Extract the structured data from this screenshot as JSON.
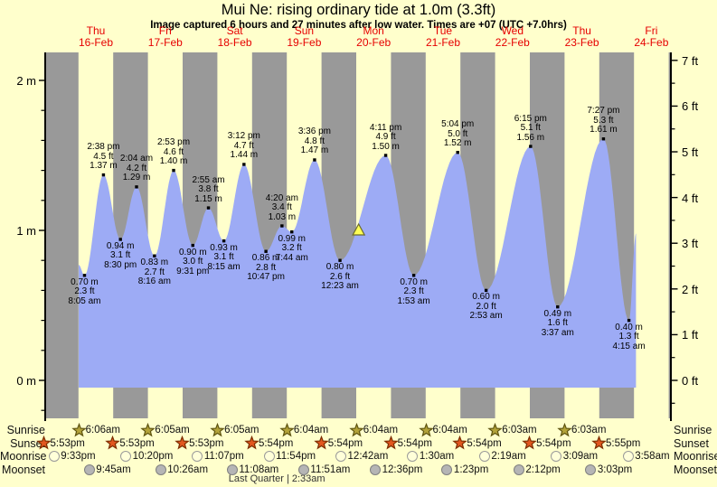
{
  "title": "Mui Ne: rising  ordinary tide at 1.0m (3.3ft)",
  "subtitle": "Image captured 6 hours and 27 minutes after low water. Times are +07 (UTC +7.0hrs)",
  "colors": {
    "background": "#ffffcc",
    "night_band": "#999999",
    "day_band": "#ffffcc",
    "tide_fill": "#9dabf5",
    "day_label_red": "#e60000",
    "axis": "#000000",
    "marker_fill": "#ffff55",
    "marker_stroke": "#6b6b2a",
    "sunrise_star_fill": "#b3a339",
    "sunrise_star_stroke": "#5e5410",
    "sunset_star_fill": "#e2571f",
    "sunset_star_stroke": "#7c2d00",
    "moonrise_fill": "#ffffd9",
    "moonrise_stroke": "#999999",
    "moonset_fill": "#b5b5b5",
    "moonset_stroke": "#808080"
  },
  "days": [
    {
      "name": "Thu",
      "date": "16-Feb"
    },
    {
      "name": "Fri",
      "date": "17-Feb"
    },
    {
      "name": "Sat",
      "date": "18-Feb"
    },
    {
      "name": "Sun",
      "date": "19-Feb"
    },
    {
      "name": "Mon",
      "date": "20-Feb"
    },
    {
      "name": "Tue",
      "date": "21-Feb"
    },
    {
      "name": "Wed",
      "date": "22-Feb"
    },
    {
      "name": "Thu",
      "date": "23-Feb"
    },
    {
      "name": "Fri",
      "date": "24-Feb"
    }
  ],
  "chart_data": {
    "type": "area",
    "x_unit": "hours after Thu 16-Feb 00:00 (+07)",
    "y_axis_left": {
      "unit": "m",
      "ticks": [
        {
          "value": 0,
          "label": "0 m"
        },
        {
          "value": 1,
          "label": "1 m"
        },
        {
          "value": 2,
          "label": "2 m"
        }
      ],
      "minor_step": 0.2,
      "minor_min": -0.2,
      "minor_max": 2.0
    },
    "y_axis_right": {
      "unit": "ft",
      "ticks": [
        {
          "value": 0,
          "label": "0 ft"
        },
        {
          "value": 1,
          "label": "1 ft"
        },
        {
          "value": 2,
          "label": "2 ft"
        },
        {
          "value": 3,
          "label": "3 ft"
        },
        {
          "value": 4,
          "label": "4 ft"
        },
        {
          "value": 5,
          "label": "5 ft"
        },
        {
          "value": 6,
          "label": "6 ft"
        },
        {
          "value": 7,
          "label": "7 ft"
        }
      ],
      "minor_step": 0.5,
      "minor_min": -0.5,
      "minor_max": 6.5
    },
    "night_bands": {
      "first_start_hour": -6,
      "duration_hours": 12,
      "period_hours": 24,
      "count": 10
    },
    "series_start": {
      "hours": 6.06,
      "meters": 0.77
    },
    "series_end": {
      "hours": 198.7,
      "meters": 0.98
    },
    "capture_marker": {
      "hours": 102.83,
      "meters": 1.0,
      "shape": "up-triangle"
    },
    "extremes": [
      {
        "kind": "low",
        "hours": 8.083,
        "meters": 0.7,
        "lines": [
          "0.70 m",
          "2.3 ft",
          "8:05 am"
        ]
      },
      {
        "kind": "high",
        "hours": 14.633,
        "meters": 1.37,
        "lines": [
          "2:38 pm",
          "4.5 ft",
          "1.37 m"
        ]
      },
      {
        "kind": "low",
        "hours": 20.5,
        "meters": 0.94,
        "lines": [
          "0.94 m",
          "3.1 ft",
          "8:30 pm"
        ]
      },
      {
        "kind": "high",
        "hours": 26.067,
        "meters": 1.29,
        "lines": [
          "2:04 am",
          "4.2 ft",
          "1.29 m"
        ]
      },
      {
        "kind": "low",
        "hours": 32.267,
        "meters": 0.83,
        "lines": [
          "0.83 m",
          "2.7 ft",
          "8:16 am"
        ]
      },
      {
        "kind": "high",
        "hours": 38.883,
        "meters": 1.4,
        "lines": [
          "2:53 pm",
          "4.6 ft",
          "1.40 m"
        ]
      },
      {
        "kind": "low",
        "hours": 45.517,
        "meters": 0.9,
        "lines": [
          "0.90 m",
          "3.0 ft",
          "9:31 pm"
        ]
      },
      {
        "kind": "high",
        "hours": 50.917,
        "meters": 1.15,
        "lines": [
          "2:55 am",
          "3.8 ft",
          "1.15 m"
        ]
      },
      {
        "kind": "low",
        "hours": 56.25,
        "meters": 0.93,
        "lines": [
          "0.93 m",
          "3.1 ft",
          "8:15 am"
        ]
      },
      {
        "kind": "high",
        "hours": 63.2,
        "meters": 1.44,
        "lines": [
          "3:12 pm",
          "4.7 ft",
          "1.44 m"
        ]
      },
      {
        "kind": "low",
        "hours": 70.783,
        "meters": 0.86,
        "lines": [
          "0.86 m",
          "2.8 ft",
          "10:47 pm"
        ]
      },
      {
        "kind": "high",
        "hours": 76.333,
        "meters": 1.03,
        "lines": [
          "4:20 am",
          "3.4 ft",
          "1.03 m"
        ]
      },
      {
        "kind": "low",
        "hours": 79.733,
        "meters": 0.99,
        "lines": [
          "0.99 m",
          "3.2 ft",
          "7:44 am"
        ]
      },
      {
        "kind": "high",
        "hours": 87.6,
        "meters": 1.47,
        "lines": [
          "3:36 pm",
          "4.8 ft",
          "1.47 m"
        ]
      },
      {
        "kind": "low",
        "hours": 96.383,
        "meters": 0.8,
        "lines": [
          "0.80 m",
          "2.6 ft",
          "12:23 am"
        ]
      },
      {
        "kind": "high",
        "hours": 112.183,
        "meters": 1.5,
        "lines": [
          "4:11 pm",
          "4.9 ft",
          "1.50 m"
        ]
      },
      {
        "kind": "low",
        "hours": 121.883,
        "meters": 0.7,
        "lines": [
          "0.70 m",
          "2.3 ft",
          "1:53 am"
        ]
      },
      {
        "kind": "high",
        "hours": 137.067,
        "meters": 1.52,
        "lines": [
          "5:04 pm",
          "5.0 ft",
          "1.52 m"
        ]
      },
      {
        "kind": "low",
        "hours": 146.883,
        "meters": 0.6,
        "lines": [
          "0.60 m",
          "2.0 ft",
          "2:53 am"
        ]
      },
      {
        "kind": "high",
        "hours": 162.25,
        "meters": 1.56,
        "lines": [
          "6:15 pm",
          "5.1 ft",
          "1.56 m"
        ]
      },
      {
        "kind": "low",
        "hours": 171.617,
        "meters": 0.49,
        "lines": [
          "0.49 m",
          "1.6 ft",
          "3:37 am"
        ]
      },
      {
        "kind": "high",
        "hours": 187.45,
        "meters": 1.61,
        "lines": [
          "7:27 pm",
          "5.3 ft",
          "1.61 m"
        ]
      },
      {
        "kind": "low",
        "hours": 196.25,
        "meters": 0.4,
        "lines": [
          "0.40 m",
          "1.3 ft",
          "4:15 am"
        ]
      }
    ]
  },
  "astro": {
    "rows": [
      {
        "key": "sunrise",
        "label": "Sunrise",
        "icon": "star",
        "entries": [
          {
            "time": "6:06am",
            "hours": 6.1
          },
          {
            "time": "6:05am",
            "hours": 30.083
          },
          {
            "time": "6:05am",
            "hours": 54.083
          },
          {
            "time": "6:04am",
            "hours": 78.067
          },
          {
            "time": "6:04am",
            "hours": 102.067
          },
          {
            "time": "6:04am",
            "hours": 126.067
          },
          {
            "time": "6:03am",
            "hours": 150.05
          },
          {
            "time": "6:03am",
            "hours": 174.05
          }
        ]
      },
      {
        "key": "sunset",
        "label": "Sunset",
        "icon": "star",
        "entries": [
          {
            "time": "5:53pm",
            "hours": -6.117
          },
          {
            "time": "5:53pm",
            "hours": 17.883
          },
          {
            "time": "5:53pm",
            "hours": 41.883
          },
          {
            "time": "5:54pm",
            "hours": 65.9
          },
          {
            "time": "5:54pm",
            "hours": 89.9
          },
          {
            "time": "5:54pm",
            "hours": 113.9
          },
          {
            "time": "5:54pm",
            "hours": 137.9
          },
          {
            "time": "5:54pm",
            "hours": 161.9
          },
          {
            "time": "5:55pm",
            "hours": 185.917
          }
        ]
      },
      {
        "key": "moonrise",
        "label": "Moonrise",
        "icon": "circle",
        "entries": [
          {
            "time": "9:33pm",
            "hours": -2.45
          },
          {
            "time": "10:20pm",
            "hours": 22.333
          },
          {
            "time": "11:07pm",
            "hours": 47.117
          },
          {
            "time": "11:54pm",
            "hours": 71.9
          },
          {
            "time": "12:42am",
            "hours": 96.7
          },
          {
            "time": "1:30am",
            "hours": 121.5
          },
          {
            "time": "2:19am",
            "hours": 146.317
          },
          {
            "time": "3:09am",
            "hours": 171.15
          },
          {
            "time": "3:58am",
            "hours": 195.967
          }
        ]
      },
      {
        "key": "moonset",
        "label": "Moonset",
        "icon": "circle",
        "entries": [
          {
            "time": "9:45am",
            "hours": 9.75
          },
          {
            "time": "10:26am",
            "hours": 34.433
          },
          {
            "time": "11:08am",
            "hours": 59.133
          },
          {
            "time": "11:51am",
            "hours": 83.85
          },
          {
            "time": "12:36pm",
            "hours": 108.6
          },
          {
            "time": "1:23pm",
            "hours": 133.383
          },
          {
            "time": "2:12pm",
            "hours": 158.2
          },
          {
            "time": "3:03pm",
            "hours": 183.05
          }
        ]
      }
    ],
    "moon_phase": "Last Quarter | 2:33am",
    "moon_phase_hours": 74.55
  }
}
